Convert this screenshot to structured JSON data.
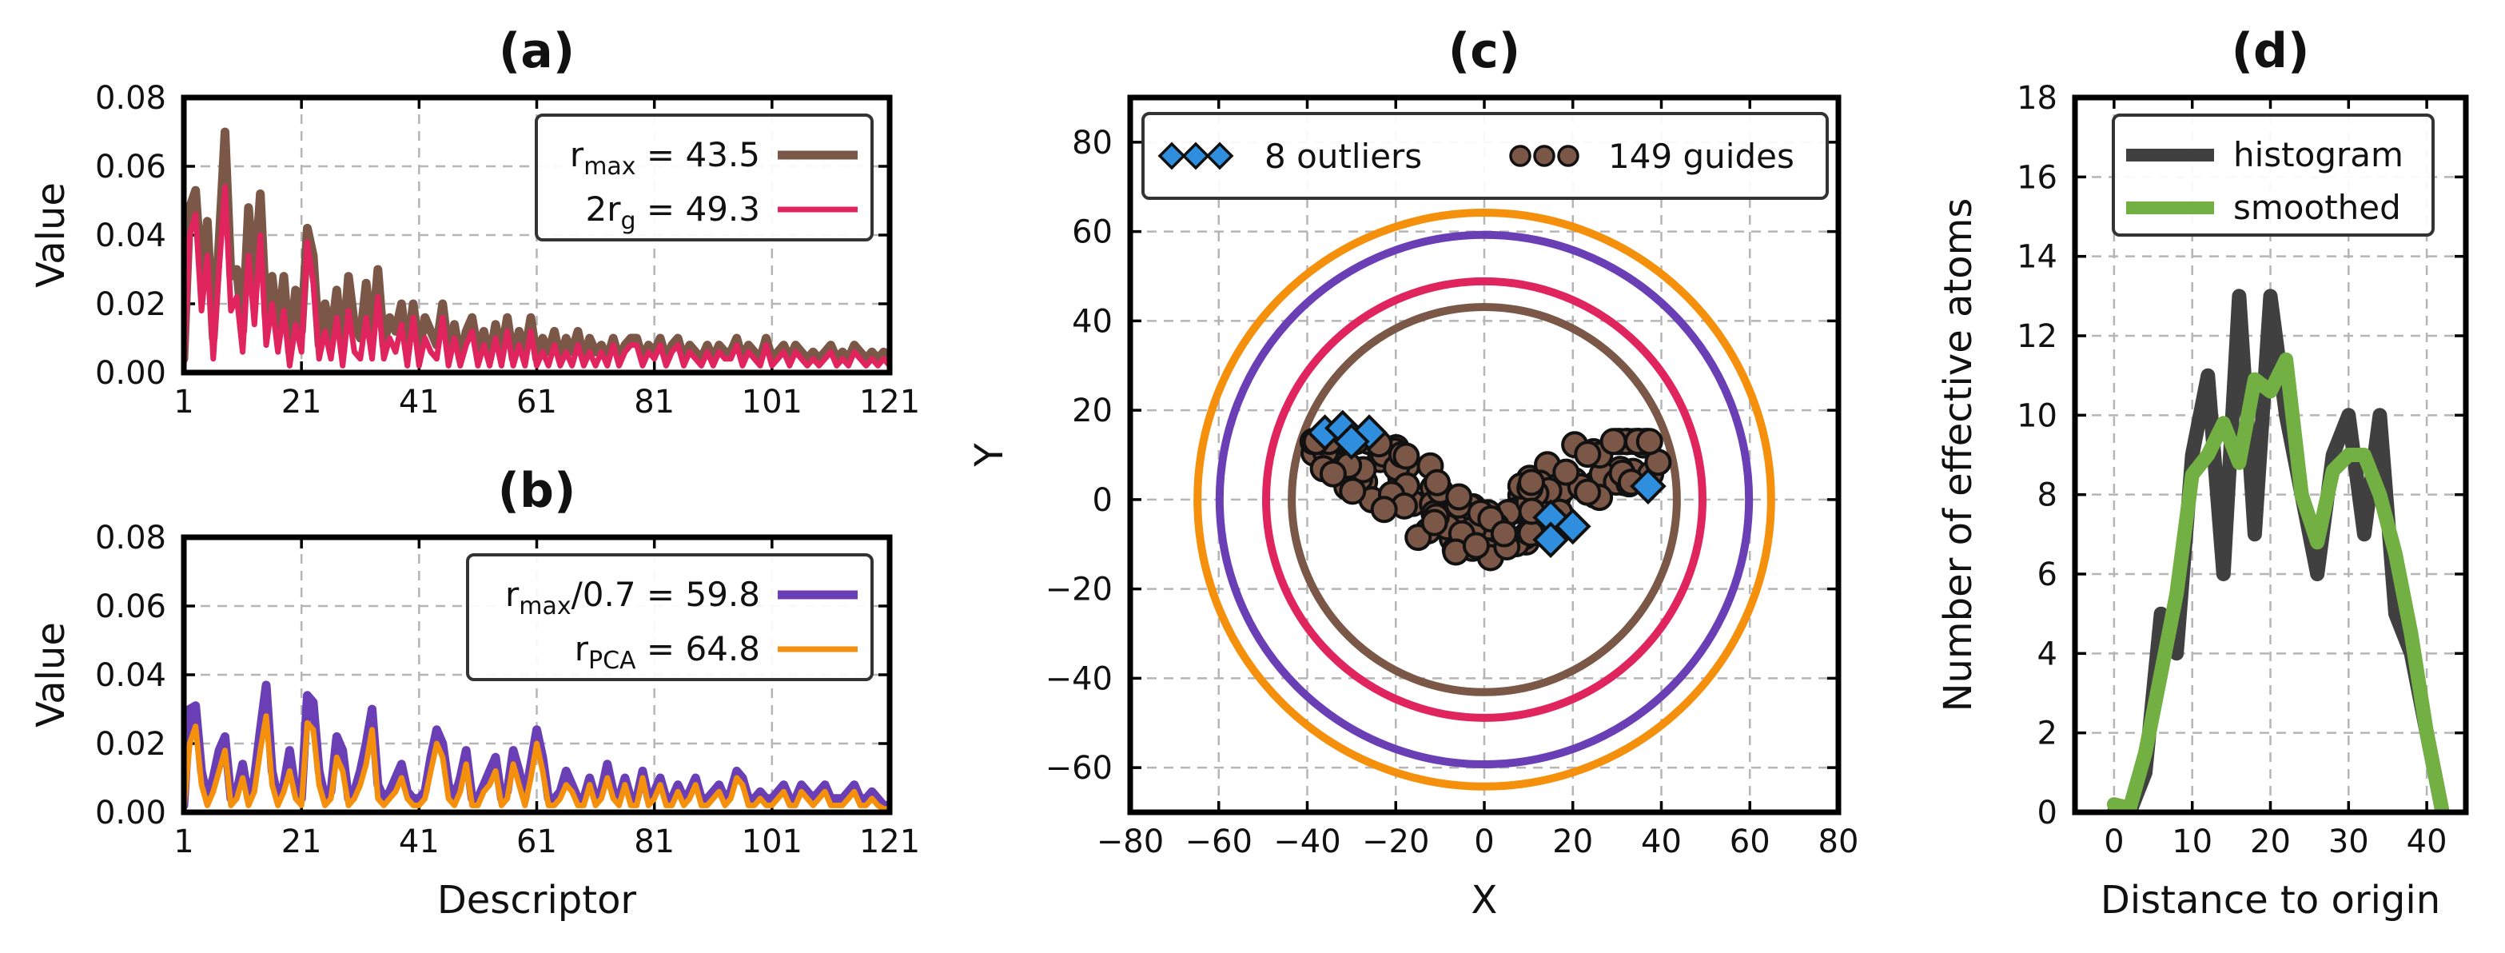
{
  "chart_data": [
    {
      "id": "a",
      "type": "line",
      "title": "(a)",
      "xlabel": "",
      "ylabel": "Value",
      "xlim": [
        1,
        121
      ],
      "ylim": [
        0,
        0.08
      ],
      "xticks": [
        1,
        21,
        41,
        61,
        81,
        101,
        121
      ],
      "xtick_labels": [
        "1",
        "21",
        "41",
        "61",
        "81",
        "101",
        "121"
      ],
      "yticks": [
        0,
        0.02,
        0.04,
        0.06,
        0.08
      ],
      "ytick_labels": [
        "0.00",
        "0.02",
        "0.04",
        "0.06",
        "0.08"
      ],
      "legend": {
        "position": "top-right"
      },
      "series": [
        {
          "name": "r_max = 43.5",
          "legend_main": "r",
          "legend_sub": "max",
          "legend_post": " = 43.5",
          "color": "#7a5747",
          "values": [
            0.004,
            0.048,
            0.053,
            0.028,
            0.044,
            0.01,
            0.038,
            0.07,
            0.028,
            0.03,
            0.012,
            0.048,
            0.026,
            0.052,
            0.016,
            0.028,
            0.012,
            0.028,
            0.006,
            0.024,
            0.012,
            0.042,
            0.034,
            0.008,
            0.02,
            0.01,
            0.024,
            0.006,
            0.028,
            0.014,
            0.01,
            0.026,
            0.01,
            0.03,
            0.008,
            0.016,
            0.012,
            0.02,
            0.006,
            0.02,
            0.006,
            0.016,
            0.012,
            0.008,
            0.02,
            0.006,
            0.014,
            0.004,
            0.012,
            0.016,
            0.006,
            0.012,
            0.004,
            0.014,
            0.006,
            0.016,
            0.004,
            0.012,
            0.006,
            0.016,
            0.004,
            0.01,
            0.006,
            0.012,
            0.004,
            0.01,
            0.006,
            0.012,
            0.004,
            0.01,
            0.006,
            0.008,
            0.004,
            0.01,
            0.004,
            0.008,
            0.01,
            0.01,
            0.004,
            0.008,
            0.006,
            0.01,
            0.004,
            0.008,
            0.01,
            0.004,
            0.008,
            0.006,
            0.004,
            0.008,
            0.004,
            0.008,
            0.006,
            0.006,
            0.01,
            0.004,
            0.008,
            0.006,
            0.004,
            0.01,
            0.004,
            0.006,
            0.008,
            0.004,
            0.008,
            0.006,
            0.004,
            0.006,
            0.004,
            0.006,
            0.008,
            0.004,
            0.006,
            0.004,
            0.008,
            0.006,
            0.004,
            0.006,
            0.004,
            0.006,
            0.004
          ]
        },
        {
          "name": "2r_g = 49.3",
          "legend_main": "2r",
          "legend_sub": "g",
          "legend_post": " = 49.3",
          "color": "#e0245e",
          "values": [
            0.002,
            0.04,
            0.046,
            0.018,
            0.034,
            0.004,
            0.03,
            0.054,
            0.018,
            0.022,
            0.006,
            0.034,
            0.014,
            0.04,
            0.008,
            0.02,
            0.006,
            0.018,
            0.002,
            0.014,
            0.006,
            0.038,
            0.026,
            0.004,
            0.012,
            0.004,
            0.016,
            0.002,
            0.018,
            0.006,
            0.004,
            0.016,
            0.004,
            0.022,
            0.004,
            0.01,
            0.006,
            0.014,
            0.002,
            0.016,
            0.002,
            0.01,
            0.006,
            0.004,
            0.016,
            0.002,
            0.01,
            0.002,
            0.008,
            0.012,
            0.002,
            0.008,
            0.002,
            0.01,
            0.002,
            0.012,
            0.002,
            0.008,
            0.002,
            0.012,
            0.002,
            0.006,
            0.002,
            0.008,
            0.002,
            0.006,
            0.002,
            0.008,
            0.002,
            0.006,
            0.002,
            0.006,
            0.002,
            0.008,
            0.002,
            0.006,
            0.008,
            0.008,
            0.002,
            0.006,
            0.004,
            0.008,
            0.002,
            0.006,
            0.008,
            0.002,
            0.006,
            0.004,
            0.002,
            0.006,
            0.002,
            0.006,
            0.004,
            0.004,
            0.008,
            0.002,
            0.006,
            0.004,
            0.002,
            0.008,
            0.002,
            0.004,
            0.006,
            0.002,
            0.006,
            0.004,
            0.002,
            0.004,
            0.002,
            0.004,
            0.006,
            0.002,
            0.004,
            0.002,
            0.006,
            0.004,
            0.002,
            0.004,
            0.002,
            0.004,
            0.002
          ]
        }
      ]
    },
    {
      "id": "b",
      "type": "line",
      "title": "(b)",
      "xlabel": "Descriptor",
      "ylabel": "Value",
      "xlim": [
        1,
        121
      ],
      "ylim": [
        0,
        0.08
      ],
      "xticks": [
        1,
        21,
        41,
        61,
        81,
        101,
        121
      ],
      "xtick_labels": [
        "1",
        "21",
        "41",
        "61",
        "81",
        "101",
        "121"
      ],
      "yticks": [
        0,
        0.02,
        0.04,
        0.06,
        0.08
      ],
      "ytick_labels": [
        "0.00",
        "0.02",
        "0.04",
        "0.06",
        "0.08"
      ],
      "legend": {
        "position": "top-right"
      },
      "series": [
        {
          "name": "r_max/0.7 = 59.8",
          "legend_main": "r",
          "legend_sub": "max",
          "legend_post": "/0.7 = 59.8",
          "color": "#6a3fb5",
          "values": [
            0.002,
            0.03,
            0.031,
            0.012,
            0.004,
            0.01,
            0.018,
            0.022,
            0.004,
            0.006,
            0.014,
            0.004,
            0.01,
            0.024,
            0.037,
            0.012,
            0.004,
            0.008,
            0.018,
            0.006,
            0.004,
            0.034,
            0.032,
            0.012,
            0.004,
            0.006,
            0.022,
            0.018,
            0.004,
            0.006,
            0.012,
            0.02,
            0.03,
            0.008,
            0.004,
            0.006,
            0.01,
            0.014,
            0.006,
            0.004,
            0.004,
            0.006,
            0.016,
            0.024,
            0.02,
            0.008,
            0.004,
            0.01,
            0.018,
            0.004,
            0.004,
            0.008,
            0.012,
            0.016,
            0.004,
            0.006,
            0.018,
            0.012,
            0.004,
            0.014,
            0.024,
            0.016,
            0.004,
            0.004,
            0.006,
            0.012,
            0.008,
            0.004,
            0.004,
            0.01,
            0.004,
            0.006,
            0.014,
            0.006,
            0.004,
            0.01,
            0.004,
            0.004,
            0.012,
            0.004,
            0.006,
            0.01,
            0.004,
            0.004,
            0.008,
            0.004,
            0.006,
            0.01,
            0.004,
            0.004,
            0.006,
            0.008,
            0.004,
            0.006,
            0.012,
            0.01,
            0.004,
            0.004,
            0.006,
            0.004,
            0.004,
            0.006,
            0.008,
            0.004,
            0.004,
            0.008,
            0.006,
            0.004,
            0.006,
            0.008,
            0.004,
            0.004,
            0.004,
            0.006,
            0.008,
            0.004,
            0.004,
            0.006,
            0.004,
            0.002,
            0.002
          ]
        },
        {
          "name": "r_PCA = 64.8",
          "legend_main": "r",
          "legend_sub": "PCA",
          "legend_post": " = 64.8",
          "color": "#f5900c",
          "values": [
            0.001,
            0.02,
            0.025,
            0.008,
            0.002,
            0.006,
            0.012,
            0.018,
            0.002,
            0.004,
            0.01,
            0.002,
            0.006,
            0.018,
            0.028,
            0.008,
            0.002,
            0.006,
            0.012,
            0.004,
            0.002,
            0.026,
            0.024,
            0.008,
            0.002,
            0.004,
            0.016,
            0.012,
            0.002,
            0.004,
            0.008,
            0.014,
            0.024,
            0.004,
            0.002,
            0.004,
            0.006,
            0.01,
            0.004,
            0.002,
            0.002,
            0.004,
            0.012,
            0.02,
            0.016,
            0.004,
            0.002,
            0.006,
            0.014,
            0.002,
            0.002,
            0.006,
            0.008,
            0.012,
            0.002,
            0.004,
            0.014,
            0.008,
            0.002,
            0.01,
            0.02,
            0.012,
            0.002,
            0.002,
            0.004,
            0.008,
            0.006,
            0.002,
            0.002,
            0.008,
            0.002,
            0.004,
            0.01,
            0.004,
            0.002,
            0.008,
            0.002,
            0.002,
            0.01,
            0.002,
            0.004,
            0.008,
            0.002,
            0.002,
            0.006,
            0.002,
            0.004,
            0.008,
            0.002,
            0.002,
            0.004,
            0.006,
            0.002,
            0.004,
            0.01,
            0.008,
            0.002,
            0.002,
            0.004,
            0.002,
            0.002,
            0.004,
            0.006,
            0.002,
            0.002,
            0.006,
            0.004,
            0.002,
            0.004,
            0.006,
            0.002,
            0.002,
            0.002,
            0.004,
            0.006,
            0.002,
            0.002,
            0.004,
            0.002,
            0.001,
            0.001
          ]
        }
      ]
    },
    {
      "id": "c",
      "type": "scatter",
      "title": "(c)",
      "xlabel": "X",
      "ylabel": "Y",
      "xlim": [
        -80,
        80
      ],
      "ylim": [
        -70,
        90
      ],
      "xticks": [
        -80,
        -60,
        -40,
        -20,
        0,
        20,
        40,
        60,
        80
      ],
      "xtick_labels": [
        "−80",
        "−60",
        "−40",
        "−20",
        "0",
        "20",
        "40",
        "60",
        "80"
      ],
      "yticks": [
        -60,
        -40,
        -20,
        0,
        20,
        40,
        60,
        80
      ],
      "ytick_labels": [
        "−60",
        "−40",
        "−20",
        "0",
        "20",
        "40",
        "60",
        "80"
      ],
      "circles": [
        {
          "r": 43.5,
          "color": "#7a5747"
        },
        {
          "r": 49.3,
          "color": "#e0245e"
        },
        {
          "r": 59.8,
          "color": "#6a3fb5"
        },
        {
          "r": 64.8,
          "color": "#f5900c"
        }
      ],
      "legend": {
        "position": "top",
        "outliers_label": "8 outliers",
        "guides_label": "149 guides",
        "outlier_color": "#2f8fde",
        "guide_color": "#7a5747"
      },
      "outliers": [
        [
          -36,
          15
        ],
        [
          -32,
          16
        ],
        [
          -26,
          15
        ],
        [
          -30,
          13
        ],
        [
          37,
          3
        ],
        [
          15,
          -4
        ],
        [
          20,
          -6
        ],
        [
          15,
          -9
        ]
      ],
      "guide_seed": 7,
      "guide_count": 149
    },
    {
      "id": "d",
      "type": "line",
      "title": "(d)",
      "xlabel": "Distance to origin",
      "ylabel": "Number of effective atoms",
      "xlim": [
        -5,
        45
      ],
      "ylim": [
        0,
        18
      ],
      "xticks": [
        0,
        10,
        20,
        30,
        40
      ],
      "xtick_labels": [
        "0",
        "10",
        "20",
        "30",
        "40"
      ],
      "yticks": [
        0,
        2,
        4,
        6,
        8,
        10,
        12,
        14,
        16,
        18
      ],
      "ytick_labels": [
        "0",
        "2",
        "4",
        "6",
        "8",
        "10",
        "12",
        "14",
        "16",
        "18"
      ],
      "legend": {
        "position": "top-left"
      },
      "series": [
        {
          "name": "histogram",
          "color": "#404040",
          "x": [
            0,
            2,
            4,
            6,
            8,
            10,
            12,
            14,
            16,
            18,
            20,
            22,
            24,
            26,
            28,
            30,
            32,
            34,
            36,
            38,
            40,
            42
          ],
          "values": [
            0,
            0,
            1,
            5,
            4,
            9,
            11,
            6,
            13,
            7,
            13,
            10,
            8,
            6,
            9,
            10,
            7,
            10,
            5,
            4,
            2,
            0
          ]
        },
        {
          "name": "smoothed",
          "color": "#72b043",
          "x": [
            0,
            2,
            4,
            6,
            8,
            10,
            12,
            14,
            16,
            18,
            20,
            22,
            24,
            26,
            28,
            30,
            32,
            34,
            36,
            38,
            40,
            42
          ],
          "values": [
            0.2,
            0.1,
            1.5,
            3.5,
            5.5,
            8.5,
            9.0,
            9.8,
            8.8,
            10.9,
            10.6,
            11.4,
            8.0,
            6.8,
            8.6,
            9.0,
            9.0,
            8.0,
            6.5,
            4.5,
            2.0,
            0.0
          ]
        }
      ]
    }
  ]
}
